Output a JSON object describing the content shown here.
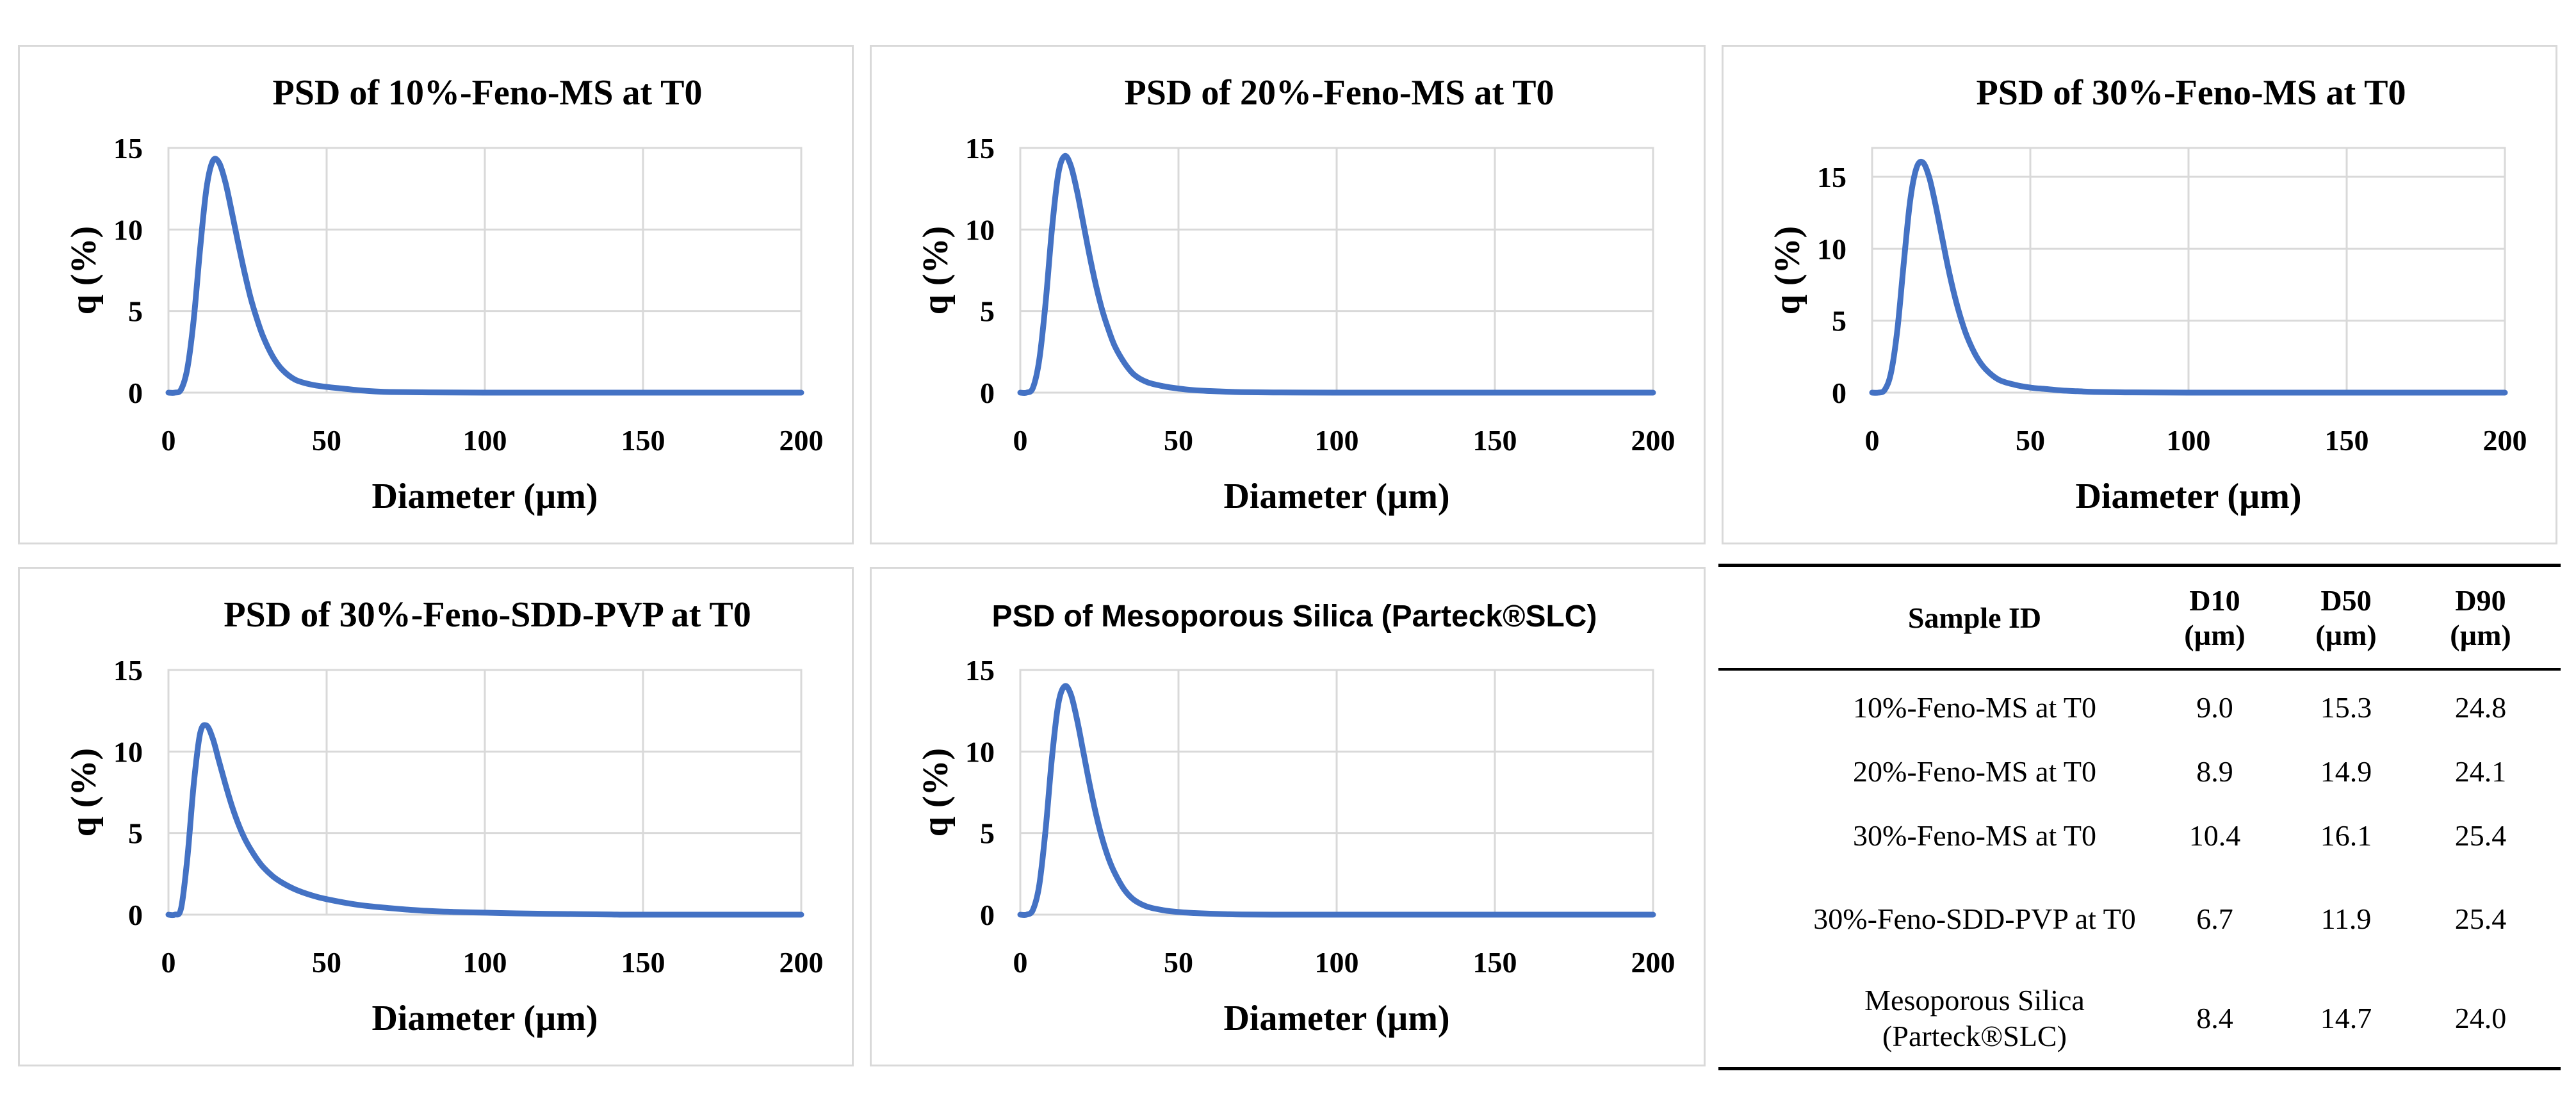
{
  "colors": {
    "series": "#4472c4",
    "grid": "#d9d9d9",
    "text": "#000000"
  },
  "chart_data": [
    {
      "type": "line",
      "title": "PSD of 10%-Feno-MS at T0",
      "xlabel": "Diameter (µm)",
      "ylabel": "q (%)",
      "xlim": [
        0,
        200
      ],
      "ylim": [
        0,
        15
      ],
      "xticks": [
        "0",
        "50",
        "100",
        "150",
        "200"
      ],
      "yticks": [
        "0",
        "5",
        "10",
        "15"
      ],
      "grid": true,
      "series": [
        {
          "x": [
            0,
            2,
            4,
            6,
            8,
            10,
            12,
            14,
            16,
            18,
            20,
            22,
            24,
            26,
            28,
            30,
            33,
            36,
            40,
            45,
            50,
            55,
            60,
            65,
            70,
            80,
            100,
            150,
            200
          ],
          "y": [
            0,
            0,
            0.2,
            1.5,
            4.5,
            8.8,
            12.5,
            14.2,
            14.1,
            12.9,
            11.1,
            9.2,
            7.4,
            5.8,
            4.5,
            3.4,
            2.2,
            1.4,
            0.8,
            0.5,
            0.35,
            0.25,
            0.15,
            0.08,
            0.04,
            0.02,
            0,
            0,
            0
          ]
        }
      ]
    },
    {
      "type": "line",
      "title": "PSD of 20%-Feno-MS at T0",
      "xlabel": "Diameter (µm)",
      "ylabel": "q (%)",
      "xlim": [
        0,
        200
      ],
      "ylim": [
        0,
        15
      ],
      "xticks": [
        "0",
        "50",
        "100",
        "150",
        "200"
      ],
      "yticks": [
        "0",
        "5",
        "10",
        "15"
      ],
      "grid": true,
      "series": [
        {
          "x": [
            0,
            2,
            4,
            6,
            8,
            10,
            12,
            14,
            16,
            18,
            20,
            22,
            24,
            26,
            28,
            30,
            33,
            36,
            40,
            45,
            50,
            55,
            60,
            65,
            70,
            80,
            100,
            150,
            200
          ],
          "y": [
            0,
            0,
            0.3,
            2.0,
            5.5,
            10.0,
            13.4,
            14.5,
            13.9,
            12.3,
            10.3,
            8.3,
            6.5,
            5.0,
            3.8,
            2.8,
            1.8,
            1.1,
            0.65,
            0.4,
            0.25,
            0.15,
            0.1,
            0.06,
            0.03,
            0.01,
            0,
            0,
            0
          ]
        }
      ]
    },
    {
      "type": "line",
      "title": "PSD of 30%-Feno-MS at T0",
      "xlabel": "Diameter (µm)",
      "ylabel": "q (%)",
      "xlim": [
        0,
        200
      ],
      "ylim": [
        0,
        17
      ],
      "xticks": [
        "0",
        "50",
        "100",
        "150",
        "200"
      ],
      "yticks": [
        "0",
        "5",
        "10",
        "15"
      ],
      "grid": true,
      "series": [
        {
          "x": [
            0,
            2,
            4,
            6,
            8,
            10,
            12,
            14,
            16,
            18,
            20,
            22,
            24,
            26,
            28,
            30,
            33,
            36,
            40,
            45,
            50,
            55,
            60,
            65,
            70,
            80,
            100,
            150,
            200
          ],
          "y": [
            0,
            0,
            0.2,
            1.4,
            4.4,
            9.0,
            13.3,
            15.6,
            16.0,
            15.0,
            13.1,
            10.9,
            8.7,
            6.8,
            5.2,
            3.9,
            2.5,
            1.6,
            0.9,
            0.55,
            0.35,
            0.25,
            0.15,
            0.1,
            0.05,
            0.02,
            0,
            0,
            0
          ]
        }
      ]
    },
    {
      "type": "line",
      "title": "PSD of 30%-Feno-SDD-PVP at T0",
      "xlabel": "Diameter (µm)",
      "ylabel": "q (%)",
      "xlim": [
        0,
        200
      ],
      "ylim": [
        0,
        15
      ],
      "xticks": [
        "0",
        "50",
        "100",
        "150",
        "200"
      ],
      "yticks": [
        "0",
        "5",
        "10",
        "15"
      ],
      "grid": true,
      "series": [
        {
          "x": [
            0,
            2,
            4,
            6,
            8,
            10,
            12,
            14,
            16,
            18,
            20,
            22,
            24,
            26,
            28,
            30,
            33,
            36,
            40,
            45,
            50,
            60,
            70,
            80,
            90,
            100,
            110,
            120,
            130,
            140,
            150,
            200
          ],
          "y": [
            0,
            0,
            0.4,
            3.5,
            8.0,
            11.1,
            11.6,
            10.8,
            9.4,
            8.0,
            6.7,
            5.6,
            4.7,
            4.0,
            3.4,
            2.9,
            2.35,
            1.95,
            1.55,
            1.2,
            0.95,
            0.6,
            0.4,
            0.25,
            0.17,
            0.12,
            0.08,
            0.05,
            0.03,
            0.01,
            0,
            0
          ]
        }
      ]
    },
    {
      "type": "line",
      "title": "PSD of Mesoporous Silica (Parteck®SLC)",
      "xlabel": "Diameter (µm)",
      "ylabel": "q (%)",
      "xlim": [
        0,
        200
      ],
      "ylim": [
        0,
        15
      ],
      "xticks": [
        "0",
        "50",
        "100",
        "150",
        "200"
      ],
      "yticks": [
        "0",
        "5",
        "10",
        "15"
      ],
      "grid": true,
      "series": [
        {
          "x": [
            0,
            2,
            4,
            6,
            8,
            10,
            12,
            14,
            16,
            18,
            20,
            22,
            24,
            26,
            28,
            30,
            33,
            36,
            40,
            45,
            50,
            55,
            60,
            65,
            70,
            80,
            100,
            150,
            200
          ],
          "y": [
            0,
            0,
            0.3,
            1.8,
            5.2,
            9.6,
            12.9,
            14.0,
            13.5,
            11.9,
            9.9,
            7.9,
            6.1,
            4.6,
            3.4,
            2.5,
            1.5,
            0.9,
            0.5,
            0.28,
            0.16,
            0.1,
            0.06,
            0.03,
            0.01,
            0,
            0,
            0,
            0
          ]
        }
      ]
    }
  ],
  "table": {
    "headers": [
      "Sample ID",
      "D10 (µm)",
      "D50 (µm)",
      "D90 (µm)"
    ],
    "header_lines": [
      [
        "Sample ID"
      ],
      [
        "D10",
        "(µm)"
      ],
      [
        "D50",
        "(µm)"
      ],
      [
        "D90",
        "(µm)"
      ]
    ],
    "rows": [
      {
        "sample_lines": [
          "10%-Feno-MS at T0"
        ],
        "d10": "9.0",
        "d50": "15.3",
        "d90": "24.8"
      },
      {
        "sample_lines": [
          "20%-Feno-MS at T0"
        ],
        "d10": "8.9",
        "d50": "14.9",
        "d90": "24.1"
      },
      {
        "sample_lines": [
          "30%-Feno-MS at T0"
        ],
        "d10": "10.4",
        "d50": "16.1",
        "d90": "25.4"
      },
      {
        "sample_lines": [
          "30%-Feno-SDD-PVP at T0"
        ],
        "d10": "6.7",
        "d50": "11.9",
        "d90": "25.4"
      },
      {
        "sample_lines": [
          "Mesoporous Silica",
          "(Parteck®SLC)"
        ],
        "d10": "8.4",
        "d50": "14.7",
        "d90": "24.0"
      }
    ]
  }
}
